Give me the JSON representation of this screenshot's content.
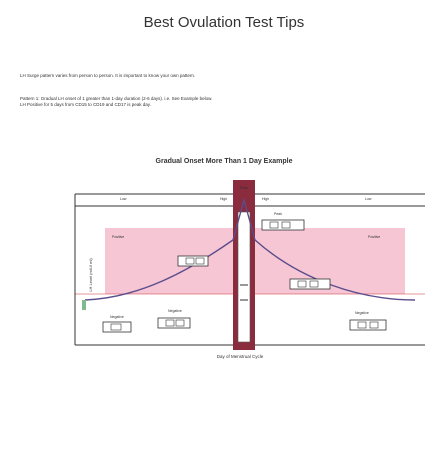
{
  "page": {
    "title": "Best Ovulation Test Tips",
    "intro": "LH Surge pattern varies from person to person. It is important to know your own pattern.",
    "pattern_line1": "Pattern 1: Gradual LH onset of 1 greater than 1-day duration (2-6 days). i.e. See Example below.",
    "pattern_line2": "LH Positive for 5 days from CD15 to CD19 and CD17 is peak day."
  },
  "figure": {
    "title": "Gradual Onset More Than 1 Day Example",
    "y_axis_label": "LH Level (mIU/ ml)",
    "x_axis_label": "Day of Menstrual Cycle",
    "labels": {
      "peak_top": "Peak",
      "high_left": "High",
      "high_right": "High",
      "low_left": "Low",
      "low_right": "Low",
      "peak_mid": "Peak",
      "positive_left": "Positive",
      "positive_right": "Positive",
      "negative_left": "Negative",
      "negative_mid": "Negative",
      "negative_right": "Negative"
    },
    "colors": {
      "positive_zone": "#f7c6d4",
      "peak_bar": "#8a2b3e",
      "curve": "#5b4d8c",
      "strip": "#7fb98f"
    }
  }
}
